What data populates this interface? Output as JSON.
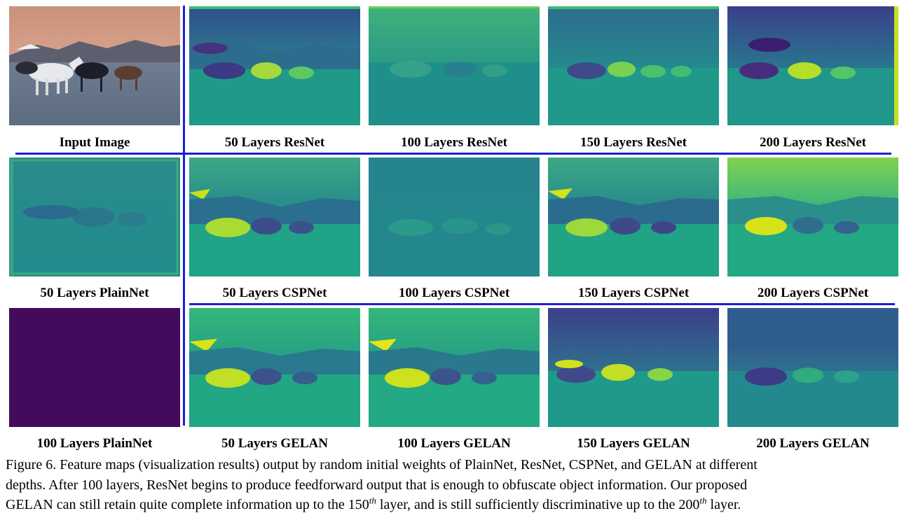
{
  "labels": {
    "r1": [
      "Input Image",
      "50 Layers ResNet",
      "100 Layers ResNet",
      "150 Layers ResNet",
      "200 Layers ResNet"
    ],
    "r2": [
      "50 Layers PlainNet",
      "50 Layers CSPNet",
      "100 Layers CSPNet",
      "150 Layers CSPNet",
      "200 Layers CSPNet"
    ],
    "r3": [
      "100 Layers PlainNet",
      "50 Layers GELAN",
      "100 Layers GELAN",
      "150 Layers GELAN",
      "200 Layers GELAN"
    ]
  },
  "caption": {
    "line1": "Figure 6.  Feature maps (visualization results) output by random initial weights of PlainNet, ResNet, CSPNet, and GELAN at different",
    "line2": "depths.  After 100 layers, ResNet begins to produce feedforward output that is enough to obfuscate object information.  Our proposed",
    "line3_a": "GELAN can still retain quite complete information up to the 150",
    "sup_a": "th",
    "line3_b": " layer, and is still sufficiently discriminative up to the 200",
    "sup_b": "th",
    "line3_c": " layer."
  },
  "colors": {
    "divider": "#1b1fd6",
    "plainnet_100_fill": "#440b5c",
    "viridis_dark": "#3b1f6e",
    "viridis_mid": "#238a8d",
    "viridis_bright": "#c8e020"
  }
}
